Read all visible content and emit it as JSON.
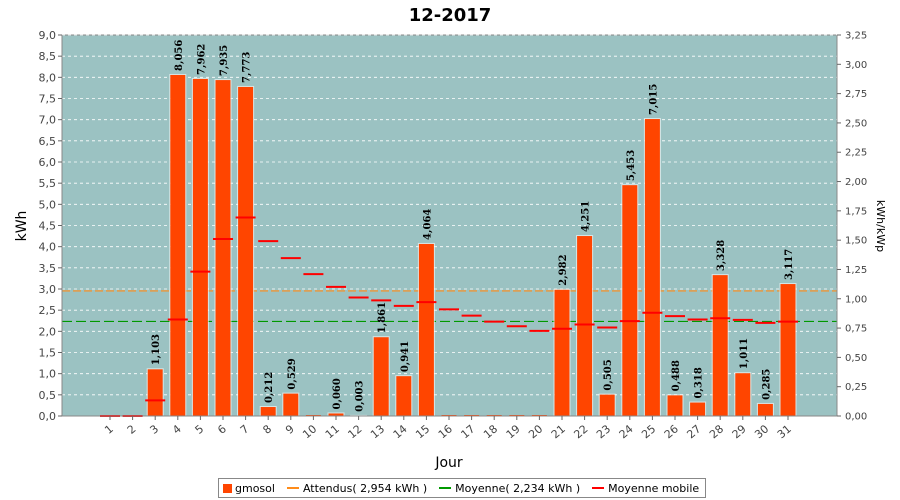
{
  "chart_data": {
    "type": "bar",
    "title": "12-2017",
    "xlabel": "Jour",
    "ylabel": "kWh",
    "y2label": "kWh/kWp",
    "ylim": [
      0,
      9.0
    ],
    "y2lim": [
      0,
      3.25
    ],
    "categories": [
      "1",
      "2",
      "3",
      "4",
      "5",
      "6",
      "7",
      "8",
      "9",
      "10",
      "11",
      "12",
      "13",
      "14",
      "15",
      "16",
      "17",
      "18",
      "19",
      "20",
      "21",
      "22",
      "23",
      "24",
      "25",
      "26",
      "27",
      "28",
      "29",
      "30",
      "31"
    ],
    "series": [
      {
        "name": "gmosol",
        "color": "#ff4500",
        "values": [
          0,
          0,
          1.103,
          8.056,
          7.962,
          7.935,
          7.773,
          0.212,
          0.529,
          0,
          0.06,
          0.003,
          1.861,
          0.941,
          4.064,
          0,
          0,
          0,
          0,
          0,
          2.982,
          4.251,
          0.505,
          5.453,
          7.015,
          0.488,
          0.318,
          3.328,
          1.011,
          0.285,
          3.117
        ],
        "labels": [
          "",
          "",
          "1,103",
          "8,056",
          "7,962",
          "7,935",
          "7,773",
          "0,212",
          "0,529",
          "",
          "0,060",
          "0,003",
          "1,861",
          "0,941",
          "4,064",
          "",
          "",
          "",
          "",
          "",
          "2,982",
          "4,251",
          "0,505",
          "5,453",
          "7,015",
          "0,488",
          "0,318",
          "3,328",
          "1,011",
          "0,285",
          "3,117"
        ]
      },
      {
        "name": "Moyenne mobile",
        "color": "#ff0000",
        "values": [
          0,
          0,
          0.37,
          2.28,
          3.41,
          4.18,
          4.69,
          4.13,
          3.73,
          3.35,
          3.05,
          2.8,
          2.73,
          2.6,
          2.69,
          2.52,
          2.37,
          2.23,
          2.12,
          2.01,
          2.06,
          2.16,
          2.09,
          2.24,
          2.44,
          2.36,
          2.28,
          2.31,
          2.27,
          2.2,
          2.23
        ]
      }
    ],
    "reference_lines": [
      {
        "name": "Attendus( 2,954 kWh )",
        "value": 2.954,
        "color": "#ff8c1a"
      },
      {
        "name": "Moyenne( 2,234 kWh )",
        "value": 2.234,
        "color": "#009900"
      }
    ],
    "yticks": [
      "0,0",
      "0,5",
      "1,0",
      "1,5",
      "2,0",
      "2,5",
      "3,0",
      "3,5",
      "4,0",
      "4,5",
      "5,0",
      "5,5",
      "6,0",
      "6,5",
      "7,0",
      "7,5",
      "8,0",
      "8,5",
      "9,0"
    ],
    "y2ticks": [
      "0,00",
      "0,25",
      "0,50",
      "0,75",
      "1,00",
      "1,25",
      "1,50",
      "1,75",
      "2,00",
      "2,25",
      "2,50",
      "2,75",
      "3,00",
      "3,25"
    ],
    "grid": true,
    "legend_position": "bottom",
    "plot_background": "#9bc2c2"
  }
}
